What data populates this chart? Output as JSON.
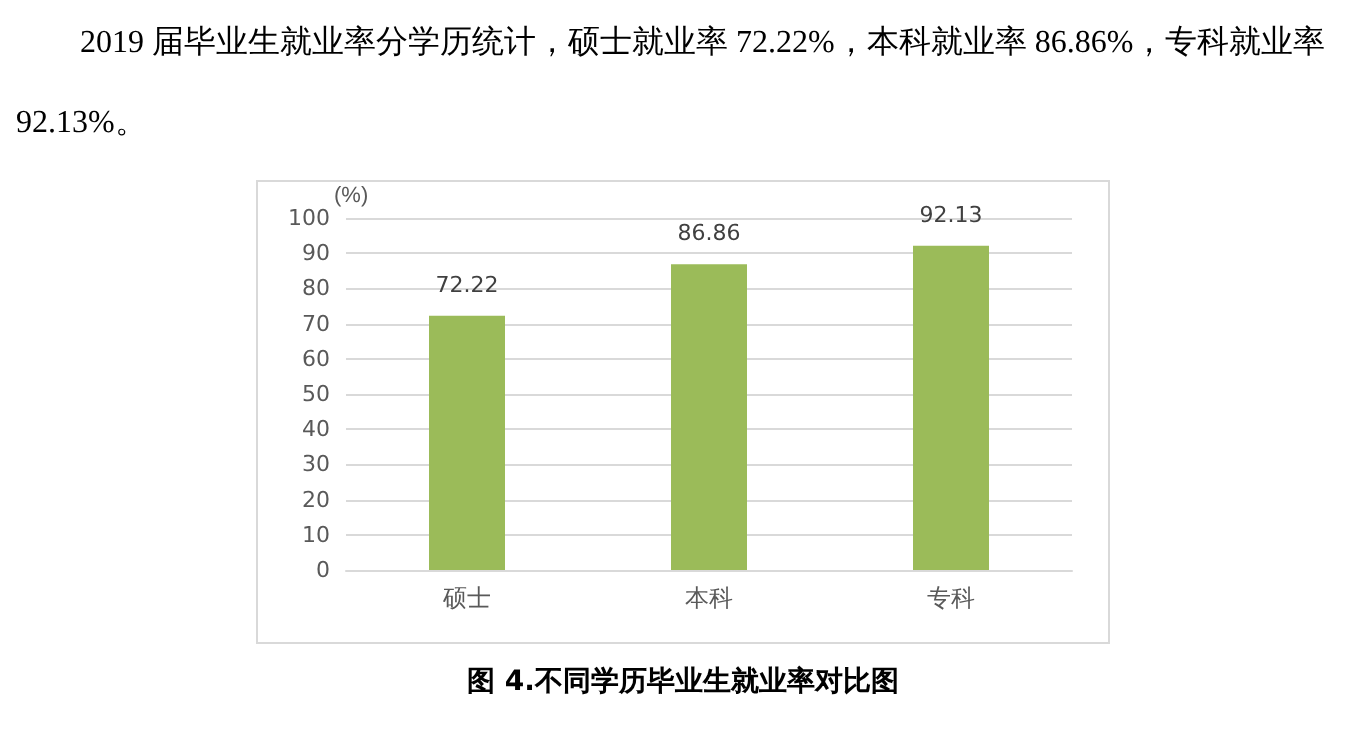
{
  "chart_data": {
    "type": "bar",
    "title": "2019 届毕业生就业率分学历统计，硕士就业率 72.22%，本科就业率 86.86%，专科就业率 92.13%。",
    "ylabel": "(%)",
    "categories": [
      "硕士",
      "本科",
      "专科"
    ],
    "values": [
      72.22,
      86.86,
      92.13
    ],
    "color": "#9bbb59",
    "ylim": [
      0,
      100
    ],
    "yticks": [
      0,
      10,
      20,
      30,
      40,
      50,
      60,
      70,
      80,
      90,
      100
    ],
    "grid": "y",
    "data_labels": true,
    "annotations": [
      "图 4.不同学历毕业生就业率对比图"
    ]
  }
}
